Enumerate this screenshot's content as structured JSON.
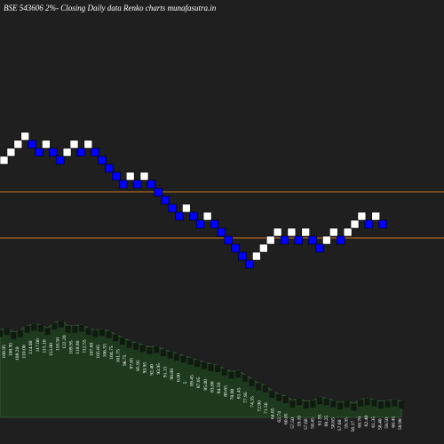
{
  "title": "BSE 543606  2%-  Closing Daily data  Renko  charts munafasutra.in",
  "colors": {
    "background": "#000000",
    "plot_bg": "#1f1f1f",
    "up_brick": "#ffffff",
    "down_brick": "#0000ff",
    "ref_line": "#c87a1e",
    "area_fill": "#1e3a1e",
    "area_stroke": "#3a5f3a",
    "bar_shadow": "#0f150f"
  },
  "chart_data": {
    "type": "renko",
    "bricks": [
      {
        "d": "up",
        "lvl": 0
      },
      {
        "d": "up",
        "lvl": 1
      },
      {
        "d": "up",
        "lvl": 2
      },
      {
        "d": "up",
        "lvl": 3
      },
      {
        "d": "down",
        "lvl": 2
      },
      {
        "d": "down",
        "lvl": 1
      },
      {
        "d": "up",
        "lvl": 2
      },
      {
        "d": "down",
        "lvl": 1
      },
      {
        "d": "down",
        "lvl": 0
      },
      {
        "d": "up",
        "lvl": 1
      },
      {
        "d": "up",
        "lvl": 2
      },
      {
        "d": "down",
        "lvl": 1
      },
      {
        "d": "up",
        "lvl": 2
      },
      {
        "d": "down",
        "lvl": 1
      },
      {
        "d": "down",
        "lvl": 0
      },
      {
        "d": "down",
        "lvl": -1
      },
      {
        "d": "down",
        "lvl": -2
      },
      {
        "d": "down",
        "lvl": -3
      },
      {
        "d": "up",
        "lvl": -2
      },
      {
        "d": "down",
        "lvl": -3
      },
      {
        "d": "up",
        "lvl": -2
      },
      {
        "d": "down",
        "lvl": -3
      },
      {
        "d": "down",
        "lvl": -4
      },
      {
        "d": "down",
        "lvl": -5
      },
      {
        "d": "down",
        "lvl": -6
      },
      {
        "d": "down",
        "lvl": -7
      },
      {
        "d": "up",
        "lvl": -6
      },
      {
        "d": "down",
        "lvl": -7
      },
      {
        "d": "down",
        "lvl": -8
      },
      {
        "d": "up",
        "lvl": -7
      },
      {
        "d": "down",
        "lvl": -8
      },
      {
        "d": "down",
        "lvl": -9
      },
      {
        "d": "down",
        "lvl": -10
      },
      {
        "d": "down",
        "lvl": -11
      },
      {
        "d": "down",
        "lvl": -12
      },
      {
        "d": "down",
        "lvl": -13
      },
      {
        "d": "up",
        "lvl": -12
      },
      {
        "d": "up",
        "lvl": -11
      },
      {
        "d": "up",
        "lvl": -10
      },
      {
        "d": "up",
        "lvl": -9
      },
      {
        "d": "down",
        "lvl": -10
      },
      {
        "d": "up",
        "lvl": -9
      },
      {
        "d": "down",
        "lvl": -10
      },
      {
        "d": "up",
        "lvl": -9
      },
      {
        "d": "down",
        "lvl": -10
      },
      {
        "d": "down",
        "lvl": -11
      },
      {
        "d": "up",
        "lvl": -10
      },
      {
        "d": "up",
        "lvl": -9
      },
      {
        "d": "down",
        "lvl": -10
      },
      {
        "d": "up",
        "lvl": -9
      },
      {
        "d": "up",
        "lvl": -8
      },
      {
        "d": "up",
        "lvl": -7
      },
      {
        "d": "down",
        "lvl": -8
      },
      {
        "d": "up",
        "lvl": -7
      },
      {
        "d": "down",
        "lvl": -8
      }
    ],
    "reference_lines": [
      0.432,
      0.536
    ],
    "volume_labels": [
      "100.95",
      "100.95",
      "108.20",
      "110.00",
      "114.00",
      "117.00",
      "115.10",
      "113.00",
      "118.50",
      "122.20",
      "109.95",
      "110.00",
      "112.55",
      "107.60",
      "105.85",
      "106.55",
      "104.75",
      "101.75",
      "98.75",
      "97.05",
      "95.95",
      "93.95",
      "92.40",
      "93.95",
      "91.15",
      "90.00",
      "6.00",
      "5",
      "89.45",
      "87.05",
      "85.00",
      "83.00",
      "84.50",
      "80.65",
      "78.00",
      "81.45",
      "77.95",
      "74.35",
      "72.00",
      "71.50",
      "64.85",
      "62.74",
      "60.05",
      "57.50",
      "59.35",
      "57.60",
      "58.45",
      "61.95",
      "60.25",
      "58.65",
      "57.60",
      "59.35",
      "56.17",
      "60.70",
      "62.40",
      "61.35",
      "58.40",
      "59.50",
      "60.45",
      "58.98"
    ],
    "volume_area": [
      0.82,
      0.84,
      0.8,
      0.82,
      0.86,
      0.88,
      0.87,
      0.84,
      0.89,
      0.91,
      0.86,
      0.86,
      0.87,
      0.84,
      0.82,
      0.83,
      0.81,
      0.78,
      0.75,
      0.72,
      0.7,
      0.68,
      0.66,
      0.67,
      0.64,
      0.62,
      0.6,
      0.58,
      0.56,
      0.54,
      0.52,
      0.5,
      0.49,
      0.46,
      0.43,
      0.44,
      0.4,
      0.36,
      0.32,
      0.3,
      0.25,
      0.22,
      0.2,
      0.16,
      0.18,
      0.15,
      0.16,
      0.19,
      0.18,
      0.16,
      0.14,
      0.16,
      0.13,
      0.17,
      0.18,
      0.17,
      0.15,
      0.16,
      0.17,
      0.15
    ]
  }
}
